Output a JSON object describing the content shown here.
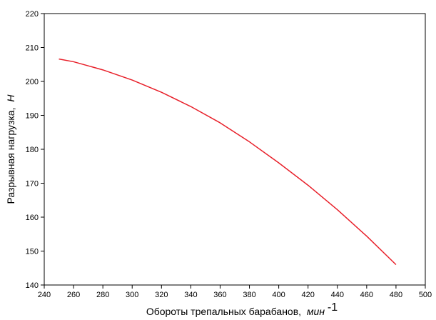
{
  "chart_data": {
    "type": "line",
    "title": "",
    "xlabel": "Обороты трепальных барабанов,",
    "xlabel_unit": "мин",
    "xlabel_exp": "-1",
    "ylabel": "Разрывная нагрузка,",
    "ylabel_unit": "Н",
    "xlim": [
      240,
      500
    ],
    "ylim": [
      140,
      220
    ],
    "x_ticks": [
      240,
      260,
      280,
      300,
      320,
      340,
      360,
      380,
      400,
      420,
      440,
      460,
      480,
      500
    ],
    "y_ticks": [
      140,
      150,
      160,
      170,
      180,
      190,
      200,
      210,
      220
    ],
    "grid": false,
    "series": [
      {
        "color": "#e8202a",
        "x": [
          250,
          260,
          280,
          300,
          320,
          340,
          360,
          380,
          400,
          420,
          440,
          460,
          480
        ],
        "y": [
          206.6,
          205.8,
          203.4,
          200.4,
          196.8,
          192.6,
          187.8,
          182.2,
          176.0,
          169.4,
          162.2,
          154.4,
          146.0
        ]
      }
    ]
  }
}
